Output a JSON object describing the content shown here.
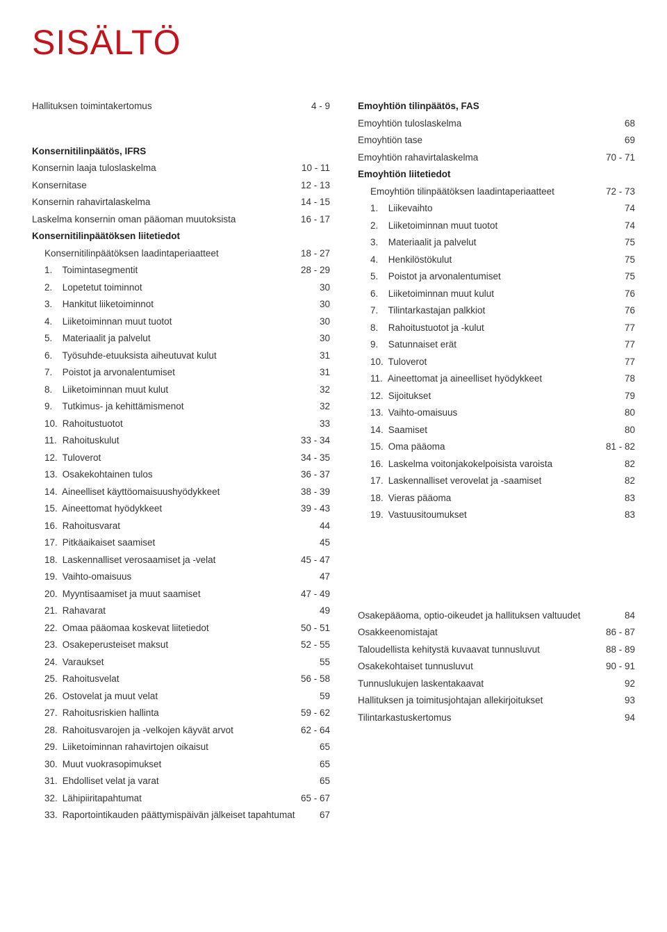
{
  "title": "SISÄLTÖ",
  "left": {
    "topRow": {
      "label": "Hallituksen toimintakertomus",
      "pages": "4 - 9"
    },
    "heading1": {
      "label": "Konsernitilinpäätös, IFRS"
    },
    "rows1": [
      {
        "label": "Konsernin laaja tuloslaskelma",
        "pages": "10 - 11"
      },
      {
        "label": "Konsernitase",
        "pages": "12 - 13"
      },
      {
        "label": "Konsernin rahavirtalaskelma",
        "pages": "14 - 15"
      },
      {
        "label": "Laskelma konsernin oman pääoman muutoksista",
        "pages": "16 - 17"
      }
    ],
    "heading2": {
      "label": "Konsernitilinpäätöksen liitetiedot"
    },
    "subRow": {
      "label": "Konsernitilinpäätöksen laadintaperiaatteet",
      "pages": "18 - 27"
    },
    "numbered": [
      {
        "n": "1.",
        "label": "Toimintasegmentit",
        "pages": "28 - 29"
      },
      {
        "n": "2.",
        "label": "Lopetetut toiminnot",
        "pages": "30"
      },
      {
        "n": "3.",
        "label": "Hankitut liiketoiminnot",
        "pages": "30"
      },
      {
        "n": "4.",
        "label": "Liiketoiminnan muut tuotot",
        "pages": "30"
      },
      {
        "n": "5.",
        "label": "Materiaalit ja palvelut",
        "pages": "30"
      },
      {
        "n": "6.",
        "label": "Työsuhde-etuuksista aiheutuvat kulut",
        "pages": "31"
      },
      {
        "n": "7.",
        "label": "Poistot ja arvonalentumiset",
        "pages": "31"
      },
      {
        "n": "8.",
        "label": "Liiketoiminnan muut kulut",
        "pages": "32"
      },
      {
        "n": "9.",
        "label": "Tutkimus- ja kehittämismenot",
        "pages": "32"
      },
      {
        "n": "10.",
        "label": "Rahoitustuotot",
        "pages": "33"
      },
      {
        "n": "11.",
        "label": "Rahoituskulut",
        "pages": "33 - 34"
      },
      {
        "n": "12.",
        "label": "Tuloverot",
        "pages": "34 - 35"
      },
      {
        "n": "13.",
        "label": "Osakekohtainen tulos",
        "pages": "36 - 37"
      },
      {
        "n": "14.",
        "label": "Aineelliset käyttöomaisuushyödykkeet",
        "pages": "38 - 39"
      },
      {
        "n": "15.",
        "label": "Aineettomat hyödykkeet",
        "pages": "39 - 43"
      },
      {
        "n": "16.",
        "label": "Rahoitusvarat",
        "pages": "44"
      },
      {
        "n": "17.",
        "label": "Pitkäaikaiset saamiset",
        "pages": "45"
      },
      {
        "n": "18.",
        "label": "Laskennalliset verosaamiset ja -velat",
        "pages": "45 - 47"
      },
      {
        "n": "19.",
        "label": "Vaihto-omaisuus",
        "pages": "47"
      },
      {
        "n": "20.",
        "label": "Myyntisaamiset ja muut saamiset",
        "pages": "47 - 49"
      },
      {
        "n": "21.",
        "label": "Rahavarat",
        "pages": "49"
      },
      {
        "n": "22.",
        "label": "Omaa pääomaa koskevat liitetiedot",
        "pages": "50 - 51"
      },
      {
        "n": "23.",
        "label": "Osakeperusteiset maksut",
        "pages": "52 - 55"
      },
      {
        "n": "24.",
        "label": "Varaukset",
        "pages": "55"
      },
      {
        "n": "25.",
        "label": "Rahoitusvelat",
        "pages": "56 - 58"
      },
      {
        "n": "26.",
        "label": "Ostovelat ja muut velat",
        "pages": "59"
      },
      {
        "n": "27.",
        "label": "Rahoitusriskien hallinta",
        "pages": "59 - 62"
      },
      {
        "n": "28.",
        "label": "Rahoitusvarojen ja -velkojen käyvät arvot",
        "pages": "62 - 64"
      },
      {
        "n": "29.",
        "label": "Liiketoiminnan rahavirtojen oikaisut",
        "pages": "65"
      },
      {
        "n": "30.",
        "label": "Muut vuokrasopimukset",
        "pages": "65"
      },
      {
        "n": "31.",
        "label": "Ehdolliset velat ja varat",
        "pages": "65"
      },
      {
        "n": "32.",
        "label": "Lähipiiritapahtumat",
        "pages": "65 - 67"
      },
      {
        "n": "33.",
        "label": "Raportointikauden päättymispäivän jälkeiset tapahtumat",
        "pages": "67"
      }
    ]
  },
  "right": {
    "heading1": {
      "label": "Emoyhtiön tilinpäätös, FAS"
    },
    "rows1": [
      {
        "label": "Emoyhtiön tuloslaskelma",
        "pages": "68"
      },
      {
        "label": "Emoyhtiön tase",
        "pages": "69"
      },
      {
        "label": "Emoyhtiön rahavirtalaskelma",
        "pages": "70 - 71"
      }
    ],
    "heading2": {
      "label": "Emoyhtiön liitetiedot"
    },
    "subRow": {
      "label": "Emoyhtiön tilinpäätöksen laadintaperiaatteet",
      "pages": "72 - 73"
    },
    "numbered": [
      {
        "n": "1.",
        "label": "Liikevaihto",
        "pages": "74"
      },
      {
        "n": "2.",
        "label": "Liiketoiminnan muut tuotot",
        "pages": "74"
      },
      {
        "n": "3.",
        "label": "Materiaalit ja palvelut",
        "pages": "75"
      },
      {
        "n": "4.",
        "label": "Henkilöstökulut",
        "pages": "75"
      },
      {
        "n": "5.",
        "label": "Poistot ja arvonalentumiset",
        "pages": "75"
      },
      {
        "n": "6.",
        "label": "Liiketoiminnan muut kulut",
        "pages": "76"
      },
      {
        "n": "7.",
        "label": "Tilintarkastajan palkkiot",
        "pages": "76"
      },
      {
        "n": "8.",
        "label": "Rahoitustuotot ja -kulut",
        "pages": "77"
      },
      {
        "n": "9.",
        "label": "Satunnaiset erät",
        "pages": "77"
      },
      {
        "n": "10.",
        "label": "Tuloverot",
        "pages": "77"
      },
      {
        "n": "11.",
        "label": "Aineettomat ja aineelliset hyödykkeet",
        "pages": "78"
      },
      {
        "n": "12.",
        "label": "Sijoitukset",
        "pages": "79"
      },
      {
        "n": "13.",
        "label": "Vaihto-omaisuus",
        "pages": "80"
      },
      {
        "n": "14.",
        "label": "Saamiset",
        "pages": "80"
      },
      {
        "n": "15.",
        "label": "Oma pääoma",
        "pages": "81 - 82"
      },
      {
        "n": "16.",
        "label": "Laskelma voitonjakokelpoisista varoista",
        "pages": "82"
      },
      {
        "n": "17.",
        "label": "Laskennalliset verovelat ja -saamiset",
        "pages": "82"
      },
      {
        "n": "18.",
        "label": "Vieras pääoma",
        "pages": "83"
      },
      {
        "n": "19.",
        "label": "Vastuusitoumukset",
        "pages": "83"
      }
    ],
    "bottom": [
      {
        "label": "Osakepääoma, optio-oikeudet ja hallituksen valtuudet",
        "pages": "84"
      },
      {
        "label": "Osakkeenomistajat",
        "pages": "86 - 87"
      },
      {
        "label": "Taloudellista kehitystä kuvaavat tunnusluvut",
        "pages": "88 - 89"
      },
      {
        "label": "Osakekohtaiset tunnusluvut",
        "pages": "90 - 91"
      },
      {
        "label": "Tunnuslukujen laskentakaavat",
        "pages": "92"
      },
      {
        "label": "Hallituksen ja toimitusjohtajan allekirjoitukset",
        "pages": "93"
      },
      {
        "label": "Tilintarkastuskertomus",
        "pages": "94"
      }
    ]
  }
}
